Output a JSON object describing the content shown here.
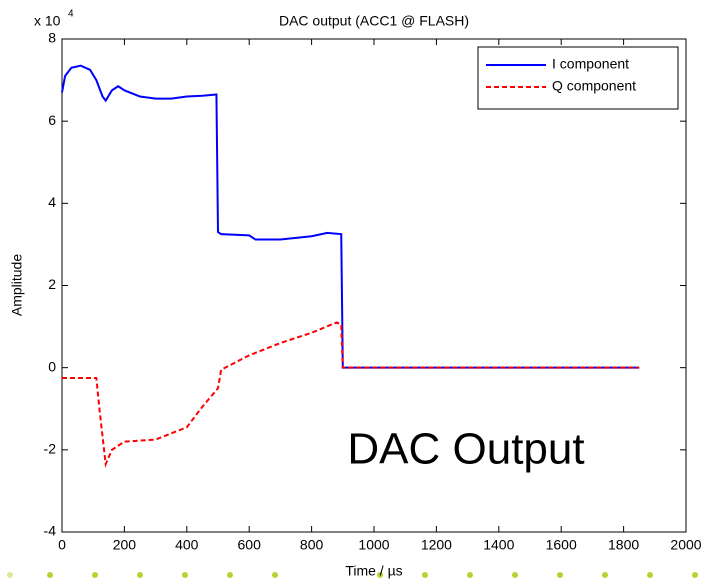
{
  "chart_data": {
    "type": "line",
    "title": "DAC output (ACC1 @ FLASH)",
    "x_label": "Time / µs",
    "y_label": "Amplitude",
    "y_scale_base": "x 10",
    "y_scale_exponent": "4",
    "annotation": "DAC Output",
    "annotation_color": "#cc22cc",
    "xlim": [
      0,
      2000
    ],
    "xticks": [
      0,
      200,
      400,
      600,
      800,
      1000,
      1200,
      1400,
      1600,
      1800,
      2000
    ],
    "ylim": [
      -4,
      8
    ],
    "yticks": [
      -4,
      -2,
      0,
      2,
      4,
      6,
      8
    ],
    "grid": false,
    "legend": "upper right",
    "series": [
      {
        "name": "I component",
        "color": "#0000ff",
        "dash": "solid",
        "x": [
          0,
          10,
          30,
          60,
          90,
          110,
          130,
          140,
          160,
          180,
          200,
          250,
          300,
          350,
          400,
          450,
          495,
          500,
          510,
          600,
          620,
          700,
          800,
          850,
          895,
          900,
          1850
        ],
        "values": [
          6.7,
          7.1,
          7.3,
          7.35,
          7.25,
          7.0,
          6.6,
          6.5,
          6.75,
          6.85,
          6.75,
          6.6,
          6.55,
          6.55,
          6.6,
          6.62,
          6.65,
          3.3,
          3.25,
          3.22,
          3.12,
          3.12,
          3.2,
          3.28,
          3.25,
          0,
          0
        ]
      },
      {
        "name": "Q component",
        "color": "#ff0000",
        "dash": "dashed",
        "x": [
          0,
          110,
          120,
          140,
          160,
          200,
          300,
          400,
          450,
          500,
          510,
          600,
          700,
          800,
          880,
          895,
          900,
          1850
        ],
        "values": [
          -0.25,
          -0.25,
          -1.0,
          -2.35,
          -2.0,
          -1.8,
          -1.75,
          -1.45,
          -0.95,
          -0.5,
          -0.05,
          0.3,
          0.6,
          0.85,
          1.1,
          1.05,
          0,
          0
        ]
      }
    ]
  }
}
